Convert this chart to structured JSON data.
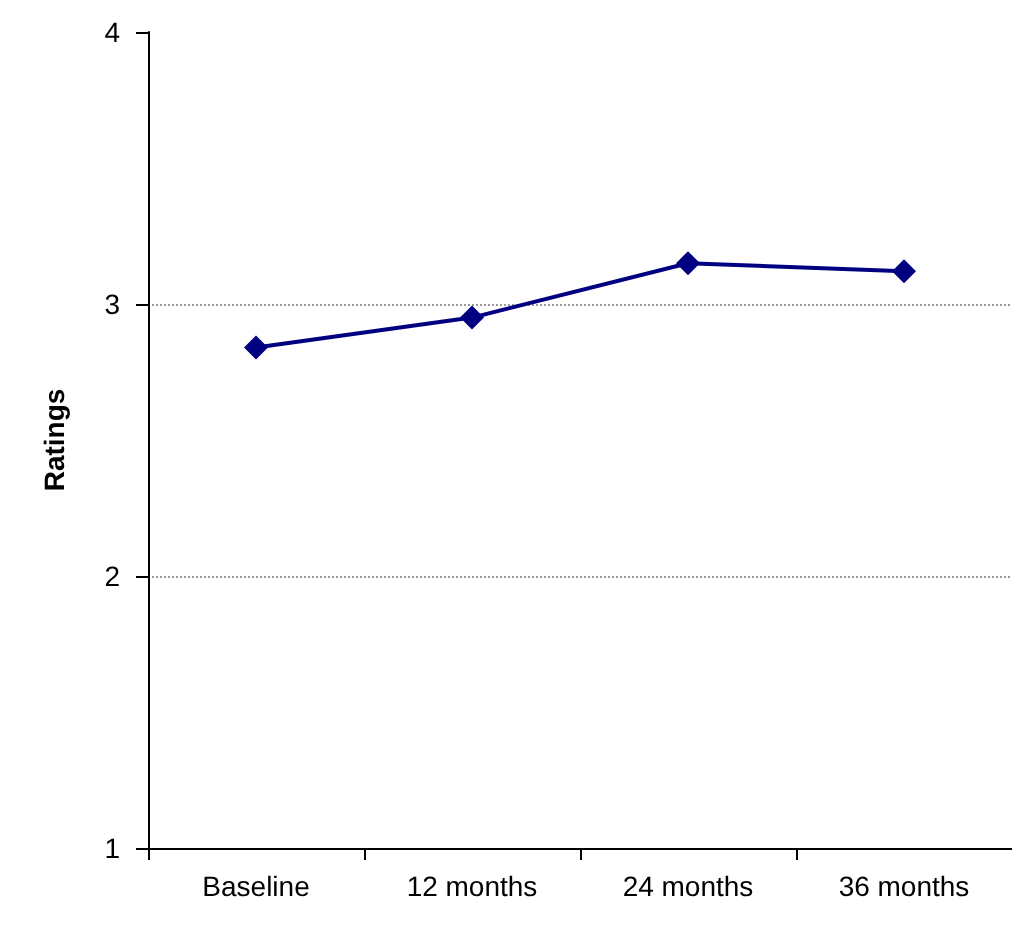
{
  "chart_data": {
    "type": "line",
    "ylabel": "Ratings",
    "categories": [
      "Baseline",
      "12 months",
      "24 months",
      "36 months"
    ],
    "series": [
      {
        "color": "#000080",
        "values": [
          2.84,
          2.95,
          3.15,
          3.12
        ]
      }
    ],
    "ylim": [
      1,
      4
    ],
    "yticks": [
      1,
      2,
      3,
      4
    ],
    "grid": "y",
    "marker": "diamond",
    "line_style": "solid"
  }
}
